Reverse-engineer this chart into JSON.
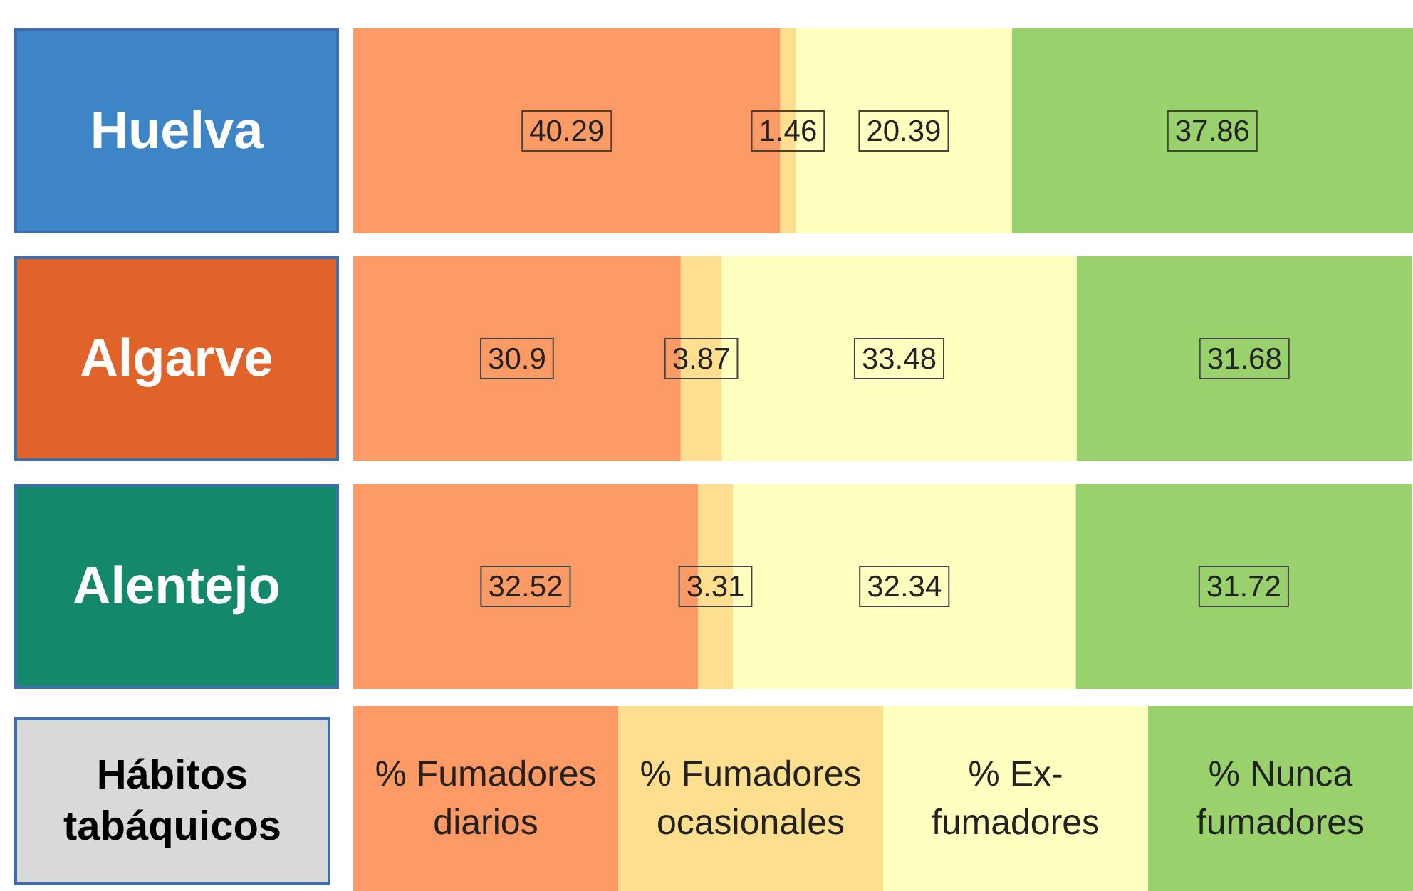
{
  "chart_data": {
    "type": "bar",
    "orientation": "horizontal",
    "stacked": true,
    "legend_title": "Hábitos tabáquicos",
    "legend": "bottom",
    "categories": [
      "Huelva",
      "Algarve",
      "Alentejo"
    ],
    "series": [
      {
        "name": "% Fumadores diarios",
        "color": "#fc9a66",
        "values": [
          40.29,
          30.9,
          32.52
        ]
      },
      {
        "name": "% Fumadores ocasionales",
        "color": "#fedf8f",
        "values": [
          1.46,
          3.87,
          3.31
        ]
      },
      {
        "name": "% Ex- fumadores",
        "color": "#ffffc0",
        "values": [
          20.39,
          33.48,
          32.34
        ]
      },
      {
        "name": "% Nunca fumadores",
        "color": "#99d26d",
        "values": [
          37.86,
          31.68,
          31.72
        ]
      }
    ],
    "xlim": [
      0,
      100
    ],
    "tick_labels": "y",
    "data_labels": true
  }
}
